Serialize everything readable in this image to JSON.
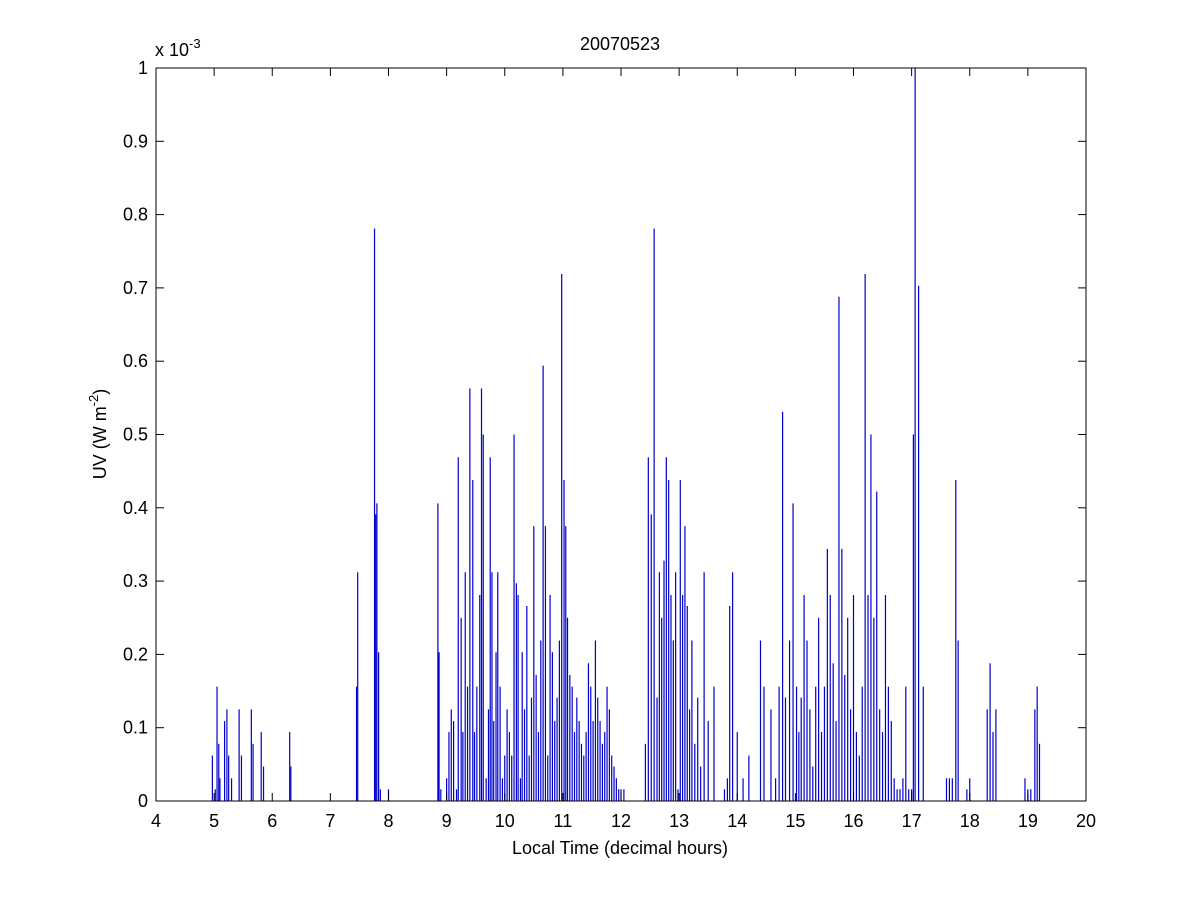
{
  "chart_data": {
    "type": "bar",
    "style": "stem",
    "title": "20070523",
    "xlabel": "Local Time (decimal hours)",
    "ylabel": {
      "base": "UV (W m",
      "superscript": "-2",
      "closing": ")"
    },
    "y_multiplier": {
      "base": "x 10",
      "exponent": "-3"
    },
    "xlim": [
      4,
      20
    ],
    "ylim": [
      0,
      1
    ],
    "xticks": [
      4,
      5,
      6,
      7,
      8,
      9,
      10,
      11,
      12,
      13,
      14,
      15,
      16,
      17,
      18,
      19,
      20
    ],
    "xtick_labels": [
      "4",
      "5",
      "6",
      "7",
      "8",
      "9",
      "10",
      "11",
      "12",
      "13",
      "14",
      "15",
      "16",
      "17",
      "18",
      "19",
      "20"
    ],
    "yticks": [
      0,
      0.1,
      0.2,
      0.3,
      0.4,
      0.5,
      0.6,
      0.7,
      0.8,
      0.9,
      1
    ],
    "ytick_labels": [
      "0",
      "0.1",
      "0.2",
      "0.3",
      "0.4",
      "0.5",
      "0.6",
      "0.7",
      "0.8",
      "0.9",
      "1"
    ],
    "grid": false,
    "line_color": "#0000cc",
    "series": [
      {
        "x": [
          4.97,
          5.02,
          5.05,
          5.08,
          5.1,
          5.18,
          5.22,
          5.25,
          5.3,
          5.43,
          5.47,
          5.64,
          5.67,
          5.81,
          5.85,
          6.3,
          6.32,
          7.45,
          7.47,
          7.76,
          7.78,
          7.8,
          7.83,
          7.86,
          8.0,
          8.85,
          8.87,
          8.9,
          9.0,
          9.04,
          9.08,
          9.12,
          9.17,
          9.2,
          9.25,
          9.28,
          9.32,
          9.36,
          9.4,
          9.45,
          9.48,
          9.52,
          9.57,
          9.6,
          9.63,
          9.68,
          9.72,
          9.75,
          9.78,
          9.81,
          9.85,
          9.88,
          9.92,
          9.96,
          10.0,
          10.04,
          10.08,
          10.12,
          10.16,
          10.2,
          10.23,
          10.27,
          10.3,
          10.34,
          10.38,
          10.42,
          10.46,
          10.5,
          10.54,
          10.58,
          10.62,
          10.66,
          10.7,
          10.74,
          10.78,
          10.82,
          10.86,
          10.9,
          10.94,
          10.98,
          11.02,
          11.05,
          11.08,
          11.12,
          11.16,
          11.2,
          11.24,
          11.28,
          11.32,
          11.36,
          11.4,
          11.44,
          11.48,
          11.52,
          11.56,
          11.6,
          11.64,
          11.68,
          11.72,
          11.76,
          11.8,
          11.84,
          11.88,
          11.92,
          11.96,
          12.0,
          12.05,
          12.42,
          12.47,
          12.52,
          12.57,
          12.62,
          12.66,
          12.7,
          12.74,
          12.78,
          12.82,
          12.86,
          12.9,
          12.94,
          12.98,
          13.02,
          13.06,
          13.1,
          13.14,
          13.18,
          13.22,
          13.27,
          13.32,
          13.37,
          13.43,
          13.5,
          13.6,
          13.78,
          13.83,
          13.87,
          13.92,
          14.0,
          14.1,
          14.2,
          14.4,
          14.46,
          14.58,
          14.66,
          14.72,
          14.78,
          14.83,
          14.9,
          14.96,
          15.02,
          15.06,
          15.1,
          15.15,
          15.2,
          15.25,
          15.3,
          15.35,
          15.4,
          15.45,
          15.5,
          15.55,
          15.6,
          15.65,
          15.7,
          15.75,
          15.8,
          15.85,
          15.9,
          15.95,
          16.0,
          16.05,
          16.1,
          16.15,
          16.2,
          16.25,
          16.3,
          16.35,
          16.4,
          16.45,
          16.5,
          16.55,
          16.6,
          16.65,
          16.7,
          16.75,
          16.8,
          16.85,
          16.9,
          16.95,
          17.0,
          17.03,
          17.06,
          17.12,
          17.2,
          17.6,
          17.65,
          17.7,
          17.76,
          17.8,
          17.95,
          18.0,
          18.3,
          18.35,
          18.4,
          18.45,
          18.95,
          19.0,
          19.05,
          19.12,
          19.16,
          19.2
        ],
        "y": [
          0.062,
          0.016,
          0.156,
          0.078,
          0.031,
          0.109,
          0.125,
          0.062,
          0.031,
          0.125,
          0.062,
          0.125,
          0.078,
          0.094,
          0.047,
          0.094,
          0.047,
          0.156,
          0.312,
          0.781,
          0.391,
          0.406,
          0.203,
          0.016,
          0.016,
          0.406,
          0.203,
          0.016,
          0.031,
          0.094,
          0.125,
          0.109,
          0.016,
          0.469,
          0.25,
          0.094,
          0.312,
          0.156,
          0.563,
          0.438,
          0.094,
          0.156,
          0.281,
          0.563,
          0.5,
          0.031,
          0.125,
          0.469,
          0.312,
          0.109,
          0.203,
          0.312,
          0.156,
          0.031,
          0.062,
          0.125,
          0.094,
          0.062,
          0.5,
          0.297,
          0.281,
          0.031,
          0.203,
          0.125,
          0.266,
          0.062,
          0.141,
          0.375,
          0.172,
          0.094,
          0.219,
          0.594,
          0.375,
          0.062,
          0.281,
          0.203,
          0.109,
          0.141,
          0.219,
          0.719,
          0.438,
          0.375,
          0.25,
          0.172,
          0.156,
          0.094,
          0.141,
          0.109,
          0.078,
          0.062,
          0.094,
          0.188,
          0.156,
          0.109,
          0.219,
          0.141,
          0.109,
          0.078,
          0.094,
          0.156,
          0.125,
          0.062,
          0.047,
          0.031,
          0.016,
          0.016,
          0.016,
          0.078,
          0.469,
          0.391,
          0.781,
          0.141,
          0.312,
          0.25,
          0.328,
          0.469,
          0.438,
          0.281,
          0.219,
          0.312,
          0.016,
          0.438,
          0.281,
          0.375,
          0.266,
          0.125,
          0.219,
          0.078,
          0.141,
          0.047,
          0.312,
          0.109,
          0.156,
          0.016,
          0.031,
          0.266,
          0.312,
          0.094,
          0.031,
          0.062,
          0.219,
          0.156,
          0.125,
          0.031,
          0.156,
          0.531,
          0.141,
          0.219,
          0.406,
          0.156,
          0.094,
          0.141,
          0.281,
          0.219,
          0.125,
          0.047,
          0.156,
          0.25,
          0.094,
          0.156,
          0.344,
          0.281,
          0.188,
          0.109,
          0.688,
          0.344,
          0.172,
          0.25,
          0.125,
          0.281,
          0.094,
          0.062,
          0.156,
          0.719,
          0.281,
          0.5,
          0.25,
          0.422,
          0.125,
          0.094,
          0.281,
          0.156,
          0.109,
          0.031,
          0.016,
          0.016,
          0.031,
          0.156,
          0.016,
          0.016,
          0.5,
          1.0,
          0.703,
          0.156,
          0.031,
          0.031,
          0.031,
          0.438,
          0.219,
          0.016,
          0.031,
          0.125,
          0.188,
          0.094,
          0.125,
          0.031,
          0.016,
          0.016,
          0.125,
          0.156,
          0.078
        ]
      }
    ]
  }
}
